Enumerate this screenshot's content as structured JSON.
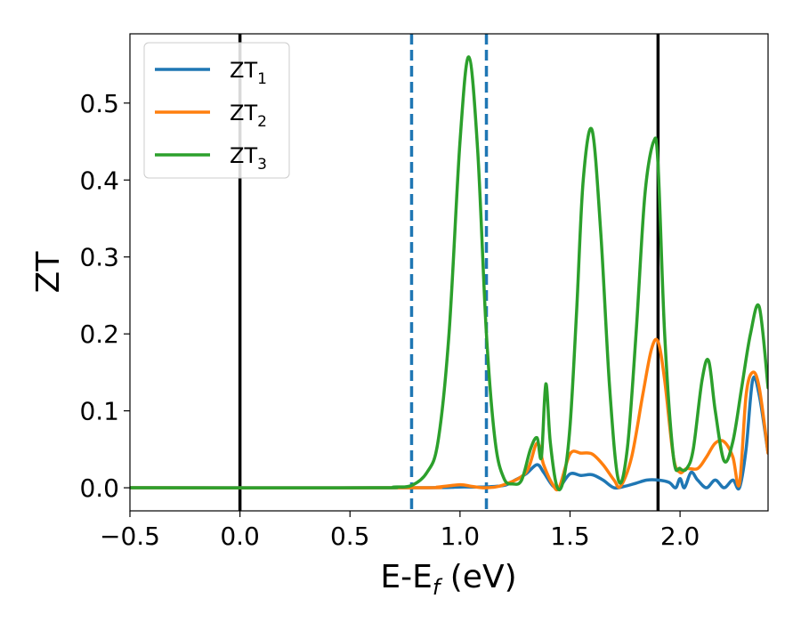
{
  "chart_data": {
    "type": "line",
    "xlabel_main": "E-E",
    "xlabel_sub": "f",
    "xlabel_tail": " (eV)",
    "ylabel": "ZT",
    "xlim": [
      -0.5,
      2.4
    ],
    "ylim": [
      -0.03,
      0.59
    ],
    "xticks": [
      -0.5,
      0.0,
      0.5,
      1.0,
      1.5,
      2.0
    ],
    "xtick_labels": [
      "−0.5",
      "0.0",
      "0.5",
      "1.0",
      "1.5",
      "2.0"
    ],
    "yticks": [
      0.0,
      0.1,
      0.2,
      0.3,
      0.4,
      0.5
    ],
    "ytick_labels": [
      "0.0",
      "0.1",
      "0.2",
      "0.3",
      "0.4",
      "0.5"
    ],
    "grid": false,
    "legend_position": "top-left",
    "vlines": [
      {
        "x": 0.0,
        "style": "solid",
        "color": "#000000"
      },
      {
        "x": 1.9,
        "style": "solid",
        "color": "#000000"
      },
      {
        "x": 0.78,
        "style": "dashed",
        "color": "#1f77b4"
      },
      {
        "x": 1.12,
        "style": "dashed",
        "color": "#1f77b4"
      }
    ],
    "series": [
      {
        "name": "ZT",
        "sub": "1",
        "color": "#1f77b4",
        "x": [
          -0.5,
          0.78,
          1.0,
          1.1,
          1.2,
          1.25,
          1.3,
          1.35,
          1.38,
          1.42,
          1.45,
          1.5,
          1.55,
          1.6,
          1.65,
          1.7,
          1.75,
          1.8,
          1.85,
          1.9,
          1.95,
          1.98,
          2.0,
          2.02,
          2.05,
          2.08,
          2.12,
          2.16,
          2.2,
          2.24,
          2.27,
          2.3,
          2.33,
          2.36,
          2.4
        ],
        "y": [
          0.0,
          0.0,
          0.001,
          0.001,
          0.003,
          0.01,
          0.018,
          0.03,
          0.02,
          0.003,
          0.0,
          0.018,
          0.016,
          0.017,
          0.01,
          0.0,
          0.002,
          0.006,
          0.01,
          0.01,
          0.007,
          0.0,
          0.012,
          0.0,
          0.02,
          0.01,
          0.0,
          0.01,
          0.0,
          0.01,
          0.0,
          0.05,
          0.14,
          0.12,
          0.045
        ]
      },
      {
        "name": "ZT",
        "sub": "2",
        "color": "#ff7f0e",
        "x": [
          -0.5,
          0.78,
          0.9,
          1.0,
          1.05,
          1.12,
          1.2,
          1.3,
          1.35,
          1.38,
          1.42,
          1.45,
          1.5,
          1.55,
          1.6,
          1.65,
          1.7,
          1.73,
          1.78,
          1.83,
          1.87,
          1.9,
          1.93,
          1.97,
          2.0,
          2.03,
          2.08,
          2.12,
          2.16,
          2.2,
          2.24,
          2.27,
          2.3,
          2.33,
          2.36,
          2.4
        ],
        "y": [
          0.0,
          0.0,
          0.001,
          0.004,
          0.002,
          0.0,
          0.004,
          0.02,
          0.058,
          0.03,
          0.005,
          0.0,
          0.044,
          0.045,
          0.044,
          0.03,
          0.01,
          0.002,
          0.04,
          0.12,
          0.18,
          0.19,
          0.14,
          0.04,
          0.02,
          0.025,
          0.025,
          0.04,
          0.058,
          0.06,
          0.04,
          0.005,
          0.12,
          0.15,
          0.13,
          0.045
        ]
      },
      {
        "name": "ZT",
        "sub": "3",
        "color": "#2ca02c",
        "x": [
          -0.5,
          0.6,
          0.7,
          0.78,
          0.85,
          0.9,
          0.95,
          1.0,
          1.04,
          1.08,
          1.12,
          1.16,
          1.2,
          1.24,
          1.28,
          1.32,
          1.35,
          1.37,
          1.39,
          1.41,
          1.44,
          1.47,
          1.5,
          1.53,
          1.56,
          1.6,
          1.64,
          1.68,
          1.72,
          1.76,
          1.8,
          1.84,
          1.88,
          1.9,
          1.93,
          1.97,
          2.0,
          2.03,
          2.06,
          2.1,
          2.13,
          2.16,
          2.2,
          2.24,
          2.28,
          2.32,
          2.36,
          2.4
        ],
        "y": [
          0.0,
          0.0,
          0.001,
          0.003,
          0.02,
          0.06,
          0.2,
          0.45,
          0.56,
          0.44,
          0.2,
          0.06,
          0.012,
          0.005,
          0.01,
          0.05,
          0.065,
          0.04,
          0.135,
          0.06,
          0.002,
          0.01,
          0.08,
          0.23,
          0.4,
          0.465,
          0.33,
          0.13,
          0.01,
          0.05,
          0.2,
          0.38,
          0.45,
          0.42,
          0.2,
          0.04,
          0.025,
          0.025,
          0.05,
          0.14,
          0.165,
          0.1,
          0.035,
          0.06,
          0.13,
          0.2,
          0.235,
          0.13
        ]
      }
    ]
  }
}
